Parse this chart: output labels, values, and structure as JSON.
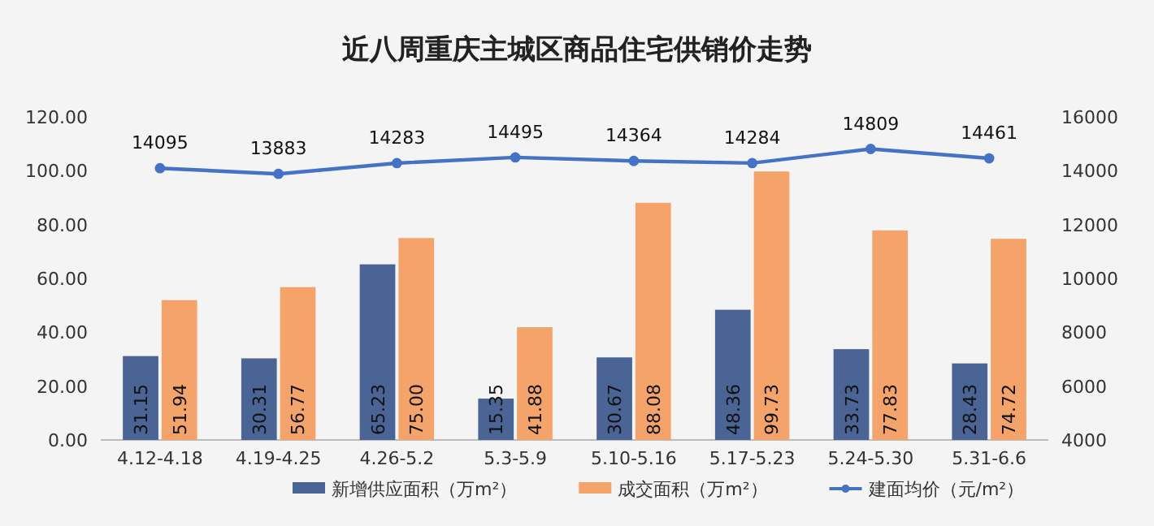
{
  "chart_data": {
    "type": "bar",
    "title": "近八周重庆主城区商品住宅供销价走势",
    "categories": [
      "4.12-4.18",
      "4.19-4.25",
      "4.26-5.2",
      "5.3-5.9",
      "5.10-5.16",
      "5.17-5.23",
      "5.24-5.30",
      "5.31-6.6"
    ],
    "series": [
      {
        "name": "新增供应面积（万m²）",
        "color": "#4a6496",
        "values": [
          31.15,
          30.31,
          65.23,
          15.35,
          30.67,
          48.36,
          33.73,
          28.43
        ],
        "value_labels": [
          "31.15",
          "30.31",
          "65.23",
          "15.35",
          "30.67",
          "48.36",
          "33.73",
          "28.43"
        ]
      },
      {
        "name": "成交面积（万m²）",
        "color": "#f4a46a",
        "values": [
          51.94,
          56.77,
          75.0,
          41.88,
          88.08,
          99.73,
          77.83,
          74.72
        ],
        "value_labels": [
          "51.94",
          "56.77",
          "75.00",
          "41.88",
          "88.08",
          "99.73",
          "77.83",
          "74.72"
        ]
      },
      {
        "name": "建面均价（元/m²）",
        "type": "line",
        "axis": "y2",
        "color": "#4472c4",
        "marker": "circle",
        "values": [
          14095,
          13883,
          14283,
          14495,
          14364,
          14284,
          14809,
          14461
        ],
        "value_labels": [
          "14095",
          "13883",
          "14283",
          "14495",
          "14364",
          "14284",
          "14809",
          "14461"
        ]
      }
    ],
    "ylim": [
      0,
      120
    ],
    "yticks": [
      {
        "value": 0,
        "label": "0.00"
      },
      {
        "value": 20,
        "label": "20.00"
      },
      {
        "value": 40,
        "label": "40.00"
      },
      {
        "value": 60,
        "label": "60.00"
      },
      {
        "value": 80,
        "label": "80.00"
      },
      {
        "value": 100,
        "label": "100.00"
      },
      {
        "value": 120,
        "label": "120.00"
      }
    ],
    "y2lim": [
      4000,
      16000
    ],
    "y2ticks": [
      4000,
      6000,
      8000,
      10000,
      12000,
      14000,
      16000
    ],
    "legend": "bottom"
  }
}
